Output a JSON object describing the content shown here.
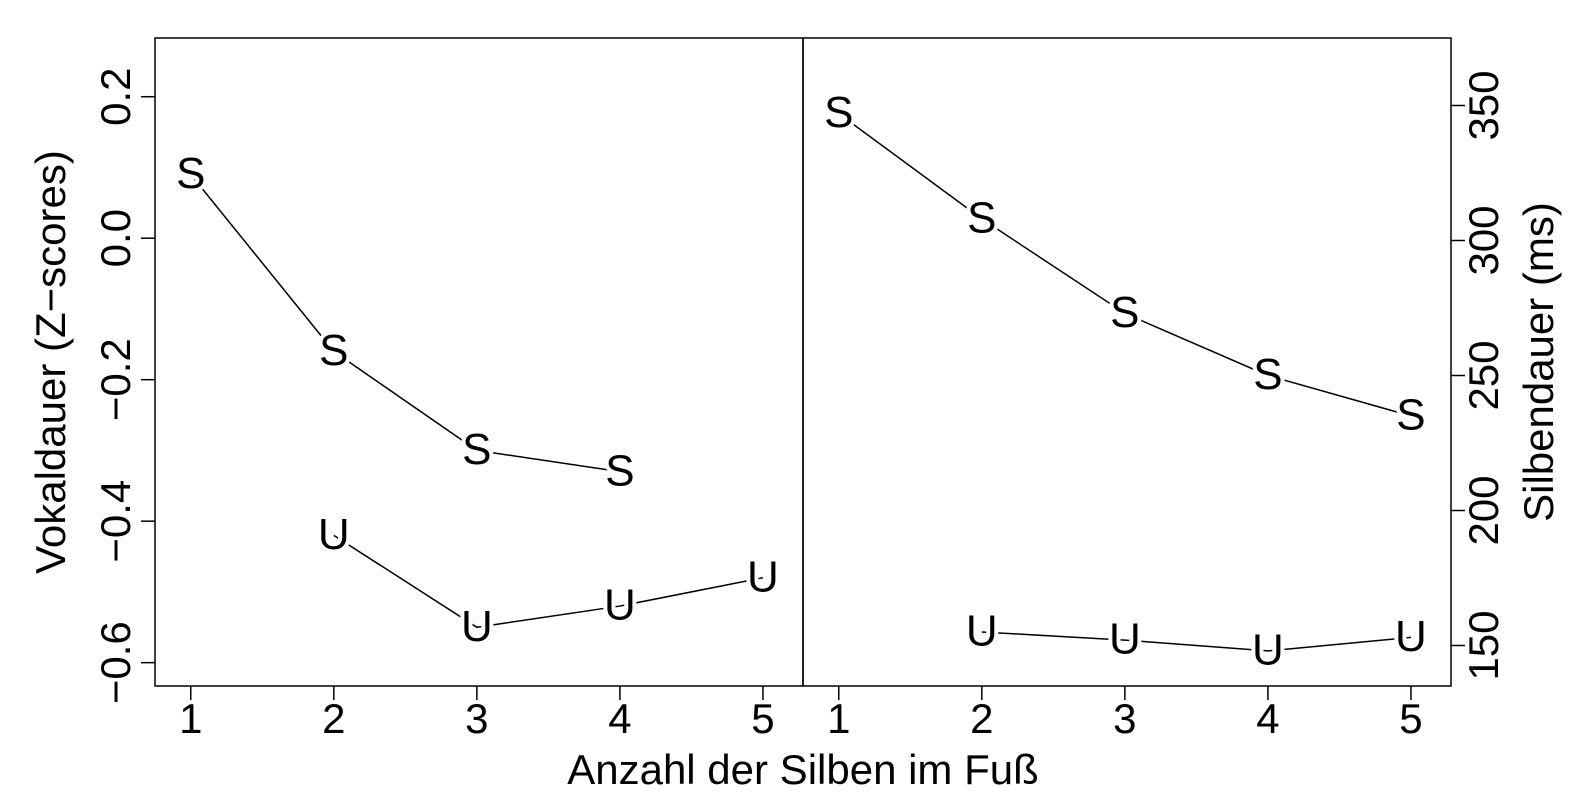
{
  "xlabel": "Anzahl der Silben im Fuß",
  "chart_data": [
    {
      "type": "line",
      "ylabel": "Vokaldauer (Z−scores)",
      "y_axis_side": "left",
      "x": [
        1,
        2,
        3,
        4,
        5
      ],
      "xlim": [
        0.75,
        5.28
      ],
      "xticks": [
        1,
        2,
        3,
        4,
        5
      ],
      "ylim": [
        -0.633,
        0.283
      ],
      "yticks": [
        {
          "value": 0.2,
          "label": "0.2"
        },
        {
          "value": 0,
          "label": "0.0"
        },
        {
          "value": -0.2,
          "label": "−0.2"
        },
        {
          "value": -0.4,
          "label": "−0.4"
        },
        {
          "value": -0.6,
          "label": "−0.6"
        }
      ],
      "series": [
        {
          "name": "S",
          "color": "#000000",
          "values": [
            0.09,
            -0.16,
            -0.3,
            -0.33,
            null
          ]
        },
        {
          "name": "U",
          "color": "#000000",
          "values": [
            null,
            -0.42,
            -0.55,
            -0.52,
            -0.48
          ]
        }
      ]
    },
    {
      "type": "line",
      "ylabel": "Silbendauer (ms)",
      "y_axis_side": "right",
      "x": [
        1,
        2,
        3,
        4,
        5
      ],
      "xlim": [
        0.75,
        5.28
      ],
      "xticks": [
        1,
        2,
        3,
        4,
        5
      ],
      "ylim": [
        135,
        375
      ],
      "yticks": [
        150,
        200,
        250,
        300,
        350
      ],
      "series": [
        {
          "name": "S",
          "color": "#000000",
          "values": [
            347,
            308,
            273,
            250,
            235
          ]
        },
        {
          "name": "U",
          "color": "#000000",
          "values": [
            null,
            155,
            152,
            148,
            153
          ]
        }
      ]
    }
  ]
}
